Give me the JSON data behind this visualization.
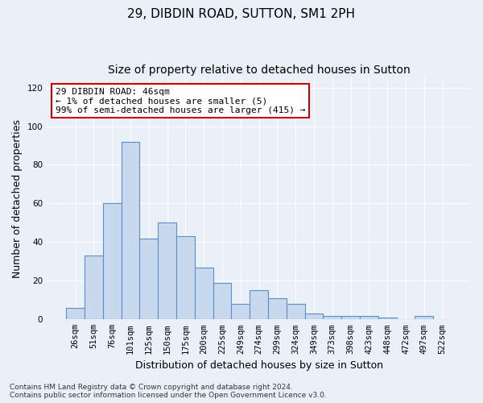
{
  "title_line1": "29, DIBDIN ROAD, SUTTON, SM1 2PH",
  "title_line2": "Size of property relative to detached houses in Sutton",
  "xlabel": "Distribution of detached houses by size in Sutton",
  "ylabel": "Number of detached properties",
  "categories": [
    "26sqm",
    "51sqm",
    "76sqm",
    "101sqm",
    "125sqm",
    "150sqm",
    "175sqm",
    "200sqm",
    "225sqm",
    "249sqm",
    "274sqm",
    "299sqm",
    "324sqm",
    "349sqm",
    "373sqm",
    "398sqm",
    "423sqm",
    "448sqm",
    "472sqm",
    "497sqm",
    "522sqm"
  ],
  "values": [
    6,
    33,
    60,
    92,
    42,
    50,
    43,
    27,
    19,
    8,
    15,
    11,
    8,
    3,
    2,
    2,
    2,
    1,
    0,
    2,
    0
  ],
  "bar_color": "#c9d9ed",
  "bar_edge_color": "#5b8fc9",
  "annotation_text": "29 DIBDIN ROAD: 46sqm\n← 1% of detached houses are smaller (5)\n99% of semi-detached houses are larger (415) →",
  "annotation_box_color": "#ffffff",
  "annotation_box_edge_color": "#cc0000",
  "ylim": [
    0,
    125
  ],
  "yticks": [
    0,
    20,
    40,
    60,
    80,
    100,
    120
  ],
  "bg_color": "#eaf0f8",
  "plot_bg_color": "#eaf0f8",
  "grid_color": "#ffffff",
  "footnote": "Contains HM Land Registry data © Crown copyright and database right 2024.\nContains public sector information licensed under the Open Government Licence v3.0.",
  "title_fontsize": 11,
  "subtitle_fontsize": 10,
  "axis_label_fontsize": 9,
  "tick_fontsize": 7.5,
  "annotation_fontsize": 8,
  "footnote_fontsize": 6.5
}
